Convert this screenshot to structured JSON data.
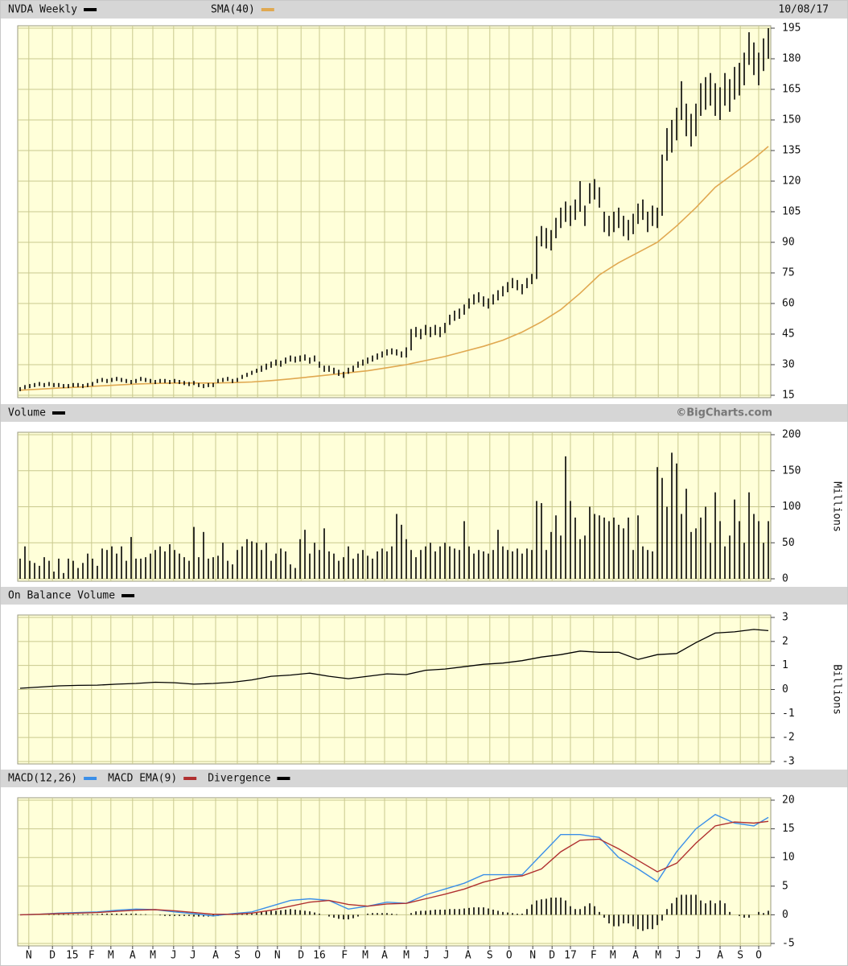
{
  "chart_data": [
    {
      "type": "ohlc",
      "title": "NVDA Weekly",
      "date": "10/08/17",
      "color": "#000000",
      "high": [
        19,
        20,
        20.5,
        21,
        21.5,
        21,
        21.5,
        21,
        21,
        20.5,
        20.5,
        21,
        21,
        20.5,
        21,
        21.5,
        23,
        23.5,
        23,
        23.5,
        24,
        23.5,
        23,
        22.5,
        23,
        24,
        23.5,
        23,
        22.5,
        23,
        23,
        22.5,
        23,
        22.5,
        22,
        21.5,
        22,
        21,
        20.5,
        21,
        21,
        23,
        23.5,
        24,
        23,
        23.5,
        25,
        26,
        27,
        28,
        29.5,
        30.5,
        31.5,
        32.5,
        32,
        33.5,
        34.5,
        34,
        34.5,
        35,
        33.5,
        34.5,
        31.5,
        29.5,
        29.5,
        28.5,
        27.5,
        26.5,
        28.5,
        29.5,
        31.5,
        32.5,
        33.5,
        34.5,
        35.5,
        36.5,
        37.5,
        38,
        37.5,
        36.5,
        38.5,
        47.5,
        48.5,
        47.5,
        49.5,
        48.5,
        49.5,
        48.5,
        50.5,
        54.5,
        56.5,
        57.5,
        59.5,
        62.5,
        64.5,
        65.5,
        63.5,
        62.5,
        64.5,
        66.5,
        68.5,
        70.5,
        72.5,
        71.5,
        69.5,
        72.5,
        74.5,
        93,
        98,
        97,
        96,
        102,
        107,
        110,
        108,
        111,
        120,
        108,
        119,
        121,
        117,
        105,
        103,
        105,
        107,
        103,
        101,
        104,
        109,
        111,
        105,
        108,
        107,
        133,
        146,
        150,
        156,
        169,
        158,
        153,
        158,
        168,
        171,
        173,
        168,
        166,
        173,
        170,
        176,
        178,
        183,
        193,
        188,
        183,
        190,
        195
      ],
      "low": [
        17,
        18,
        18.5,
        19,
        19.5,
        19,
        19.5,
        19,
        19,
        18.5,
        18.5,
        19,
        19,
        18.5,
        19,
        19.5,
        21,
        21.5,
        21,
        21.5,
        22,
        21.5,
        21,
        20.5,
        21,
        22,
        21.5,
        21,
        20.5,
        21,
        21,
        20.5,
        21,
        20.5,
        20,
        19.5,
        20,
        19,
        18.5,
        19,
        19,
        21,
        21.5,
        22,
        21,
        21.5,
        23,
        24,
        25,
        26,
        26.5,
        27.5,
        28.5,
        29.5,
        29,
        30.5,
        31.5,
        31,
        31.5,
        32,
        30.5,
        31.5,
        28.5,
        26.5,
        26.5,
        25.5,
        24.5,
        23.5,
        25.5,
        26.5,
        28.5,
        29.5,
        30.5,
        31.5,
        32.5,
        33.5,
        34.5,
        35,
        34.5,
        33.5,
        33.5,
        37,
        43.5,
        42.5,
        44.5,
        43.5,
        44.5,
        43.5,
        45.5,
        49.5,
        51.5,
        52.5,
        54.5,
        57.5,
        59.5,
        60.5,
        58.5,
        57.5,
        59.5,
        61.5,
        63.5,
        65.5,
        67.5,
        66.5,
        64.5,
        67.5,
        69.5,
        72,
        88,
        87,
        86,
        92,
        97,
        100,
        98,
        101,
        105,
        98,
        109,
        111,
        107,
        95,
        93,
        95,
        97,
        93,
        91,
        94,
        99,
        101,
        95,
        98,
        97,
        103,
        130,
        134,
        140,
        150,
        142,
        137,
        142,
        152,
        155,
        157,
        152,
        150,
        157,
        154,
        160,
        162,
        167,
        177,
        172,
        167,
        174,
        180
      ],
      "overlay": {
        "name": "SMA(40)",
        "color": "#e0a850",
        "x": [
          0,
          4,
          8,
          12,
          16,
          20,
          24,
          28,
          32,
          36,
          40,
          44,
          48,
          52,
          56,
          60,
          64,
          68,
          72,
          76,
          80,
          84,
          88,
          92,
          96,
          100,
          104,
          108,
          112,
          116,
          120,
          124,
          128,
          132,
          136,
          140,
          144,
          148,
          152,
          155
        ],
        "values": [
          17.5,
          18,
          18.5,
          19,
          19.5,
          20,
          20.5,
          20.8,
          21,
          21,
          21,
          21.2,
          21.5,
          22.2,
          23,
          24,
          25,
          26,
          27,
          28.5,
          30,
          32,
          34,
          36.5,
          39,
          42,
          46,
          51,
          57,
          65,
          74,
          80,
          85,
          90,
          98,
          107,
          117,
          124,
          131,
          137
        ]
      },
      "ylim": [
        15,
        195
      ],
      "yticks": [
        15,
        30,
        45,
        60,
        75,
        90,
        105,
        120,
        135,
        150,
        165,
        180,
        195
      ]
    },
    {
      "type": "bar",
      "title": "Volume",
      "credit": "©BigCharts.com",
      "axis_label": "Millions",
      "color": "#000000",
      "values": [
        28,
        45,
        25,
        22,
        18,
        30,
        25,
        10,
        28,
        8,
        28,
        25,
        15,
        22,
        35,
        28,
        18,
        42,
        40,
        45,
        35,
        45,
        25,
        58,
        28,
        28,
        30,
        35,
        40,
        45,
        38,
        48,
        40,
        35,
        30,
        25,
        72,
        30,
        65,
        28,
        30,
        32,
        50,
        25,
        20,
        40,
        45,
        55,
        52,
        50,
        40,
        50,
        25,
        35,
        42,
        38,
        20,
        15,
        55,
        68,
        35,
        50,
        40,
        70,
        38,
        35,
        25,
        30,
        45,
        28,
        35,
        40,
        32,
        28,
        38,
        42,
        38,
        45,
        90,
        75,
        55,
        40,
        30,
        40,
        45,
        50,
        38,
        45,
        50,
        45,
        42,
        40,
        80,
        45,
        35,
        40,
        38,
        35,
        40,
        68,
        45,
        40,
        38,
        42,
        35,
        42,
        40,
        108,
        105,
        40,
        65,
        88,
        60,
        170,
        108,
        85,
        55,
        60,
        100,
        90,
        88,
        85,
        80,
        85,
        75,
        70,
        85,
        40,
        88,
        45,
        40,
        38,
        155,
        140,
        100,
        175,
        160,
        90,
        125,
        65,
        70,
        85,
        100,
        50,
        120,
        80,
        45,
        60,
        110,
        80,
        50,
        120,
        90,
        80,
        50,
        80
      ],
      "ylim": [
        0,
        200
      ],
      "yticks": [
        0,
        50,
        100,
        150,
        200
      ]
    },
    {
      "type": "line",
      "title": "On Balance Volume",
      "axis_label": "Billions",
      "color": "#000000",
      "x": [
        0,
        4,
        8,
        12,
        16,
        20,
        24,
        28,
        32,
        36,
        40,
        44,
        48,
        52,
        56,
        60,
        64,
        68,
        72,
        76,
        80,
        84,
        88,
        92,
        96,
        100,
        104,
        108,
        112,
        116,
        120,
        124,
        128,
        132,
        136,
        140,
        144,
        148,
        152,
        155
      ],
      "values": [
        0.05,
        0.1,
        0.15,
        0.17,
        0.18,
        0.22,
        0.25,
        0.3,
        0.28,
        0.22,
        0.25,
        0.3,
        0.4,
        0.55,
        0.6,
        0.68,
        0.55,
        0.45,
        0.55,
        0.65,
        0.62,
        0.8,
        0.85,
        0.95,
        1.05,
        1.1,
        1.2,
        1.35,
        1.45,
        1.6,
        1.55,
        1.55,
        1.25,
        1.45,
        1.5,
        1.95,
        2.35,
        2.4,
        2.5,
        2.45
      ],
      "ylim": [
        -3,
        3
      ],
      "yticks": [
        -3,
        -2,
        -1,
        0,
        1,
        2,
        3
      ]
    },
    {
      "type": "macd",
      "series": [
        {
          "name": "MACD(12,26)",
          "color": "#3b8fe8",
          "type": "line",
          "x": [
            0,
            4,
            8,
            12,
            16,
            20,
            24,
            28,
            32,
            36,
            40,
            44,
            48,
            52,
            56,
            60,
            64,
            68,
            72,
            76,
            80,
            84,
            88,
            92,
            96,
            100,
            104,
            108,
            112,
            116,
            120,
            124,
            128,
            132,
            136,
            140,
            144,
            148,
            152,
            155
          ],
          "values": [
            0,
            0.1,
            0.3,
            0.4,
            0.5,
            0.8,
            1,
            0.9,
            0.5,
            0.2,
            -0.2,
            0.2,
            0.5,
            1.5,
            2.5,
            2.8,
            2.5,
            1,
            1.5,
            2.2,
            2,
            3.5,
            4.5,
            5.5,
            7,
            7,
            7,
            10.5,
            14,
            14,
            13.5,
            10,
            8,
            5.8,
            11,
            15,
            17.5,
            16,
            15.5,
            17
          ]
        },
        {
          "name": "MACD EMA(9)",
          "color": "#b03030",
          "type": "line",
          "x": [
            0,
            4,
            8,
            12,
            16,
            20,
            24,
            28,
            32,
            36,
            40,
            44,
            48,
            52,
            56,
            60,
            64,
            68,
            72,
            76,
            80,
            84,
            88,
            92,
            96,
            100,
            104,
            108,
            112,
            116,
            120,
            124,
            128,
            132,
            136,
            140,
            144,
            148,
            152,
            155
          ],
          "values": [
            0,
            0.1,
            0.2,
            0.3,
            0.4,
            0.6,
            0.8,
            0.9,
            0.7,
            0.4,
            0.1,
            0.1,
            0.3,
            0.8,
            1.5,
            2.2,
            2.5,
            1.8,
            1.5,
            1.9,
            2,
            2.8,
            3.6,
            4.5,
            5.7,
            6.5,
            6.8,
            8,
            11,
            13,
            13.2,
            11.5,
            9.5,
            7.5,
            9,
            12.5,
            15.5,
            16.2,
            16,
            16.3
          ]
        },
        {
          "name": "Divergence",
          "color": "#000000",
          "type": "bar",
          "values": [
            0,
            0,
            0,
            0,
            0,
            0,
            0.1,
            0.1,
            0.1,
            0.1,
            0.1,
            0.1,
            0.1,
            0.1,
            0.1,
            0.1,
            0.1,
            0.2,
            0.2,
            0.2,
            0.2,
            0.2,
            0.2,
            0.2,
            0.2,
            0.1,
            0.1,
            0,
            0,
            -0.1,
            -0.2,
            -0.2,
            -0.2,
            -0.2,
            -0.2,
            -0.2,
            -0.3,
            -0.3,
            -0.3,
            -0.3,
            -0.3,
            -0.2,
            0,
            0.1,
            0.1,
            0.2,
            0.2,
            0.2,
            0.2,
            0.3,
            0.5,
            0.6,
            0.7,
            0.7,
            0.8,
            0.9,
            1,
            0.9,
            0.8,
            0.7,
            0.6,
            0.4,
            0.2,
            0,
            -0.3,
            -0.5,
            -0.7,
            -0.8,
            -0.8,
            -0.6,
            -0.3,
            0,
            0.2,
            0.3,
            0.3,
            0.3,
            0.3,
            0.2,
            0.1,
            0,
            0,
            0.3,
            0.6,
            0.7,
            0.7,
            0.8,
            0.9,
            0.9,
            0.9,
            1,
            1,
            1,
            1.1,
            1.2,
            1.3,
            1.3,
            1.3,
            1.1,
            0.9,
            0.7,
            0.5,
            0.4,
            0.3,
            0.2,
            0.2,
            1,
            1.8,
            2.5,
            2.7,
            2.8,
            3,
            3,
            3,
            2.5,
            1.5,
            1,
            1,
            1.5,
            2,
            1.5,
            0.5,
            -0.5,
            -1.5,
            -2,
            -2,
            -1.5,
            -1.5,
            -2,
            -2.5,
            -2.8,
            -2.5,
            -2.5,
            -1.8,
            -1,
            1,
            2,
            3,
            3.5,
            3.5,
            3.5,
            3.5,
            2.5,
            2,
            2.5,
            2,
            2.5,
            2,
            0.5,
            0,
            -0.2,
            -0.5,
            -0.5,
            0,
            0.5,
            0.3,
            0.7
          ]
        }
      ],
      "ylim": [
        -5,
        20
      ],
      "yticks": [
        -5,
        0,
        5,
        10,
        15,
        20
      ],
      "xlim": [
        -0.5,
        155.5
      ],
      "xticks": [
        {
          "value": 1.8,
          "label": "N"
        },
        {
          "value": 6.7,
          "label": "D"
        },
        {
          "value": 10.8,
          "label": "15"
        },
        {
          "value": 14.8,
          "label": "F"
        },
        {
          "value": 18.8,
          "label": "M"
        },
        {
          "value": 23.3,
          "label": "A"
        },
        {
          "value": 27.5,
          "label": "M"
        },
        {
          "value": 31.8,
          "label": "J"
        },
        {
          "value": 35.8,
          "label": "J"
        },
        {
          "value": 40.5,
          "label": "A"
        },
        {
          "value": 45,
          "label": "S"
        },
        {
          "value": 49.2,
          "label": "O"
        },
        {
          "value": 53.3,
          "label": "N"
        },
        {
          "value": 58.2,
          "label": "D"
        },
        {
          "value": 62,
          "label": "16"
        },
        {
          "value": 67.2,
          "label": "F"
        },
        {
          "value": 71.5,
          "label": "M"
        },
        {
          "value": 75.5,
          "label": "A"
        },
        {
          "value": 80,
          "label": "M"
        },
        {
          "value": 84.2,
          "label": "J"
        },
        {
          "value": 88.3,
          "label": "J"
        },
        {
          "value": 92.8,
          "label": "A"
        },
        {
          "value": 97.3,
          "label": "S"
        },
        {
          "value": 101.3,
          "label": "O"
        },
        {
          "value": 106.2,
          "label": "N"
        },
        {
          "value": 110.2,
          "label": "D"
        },
        {
          "value": 114,
          "label": "17"
        },
        {
          "value": 118.8,
          "label": "F"
        },
        {
          "value": 122.8,
          "label": "M"
        },
        {
          "value": 127.5,
          "label": "A"
        },
        {
          "value": 132.2,
          "label": "M"
        },
        {
          "value": 136.3,
          "label": "J"
        },
        {
          "value": 140.5,
          "label": "J"
        },
        {
          "value": 145,
          "label": "A"
        },
        {
          "value": 149.2,
          "label": "S"
        },
        {
          "value": 153,
          "label": "O"
        }
      ]
    }
  ]
}
